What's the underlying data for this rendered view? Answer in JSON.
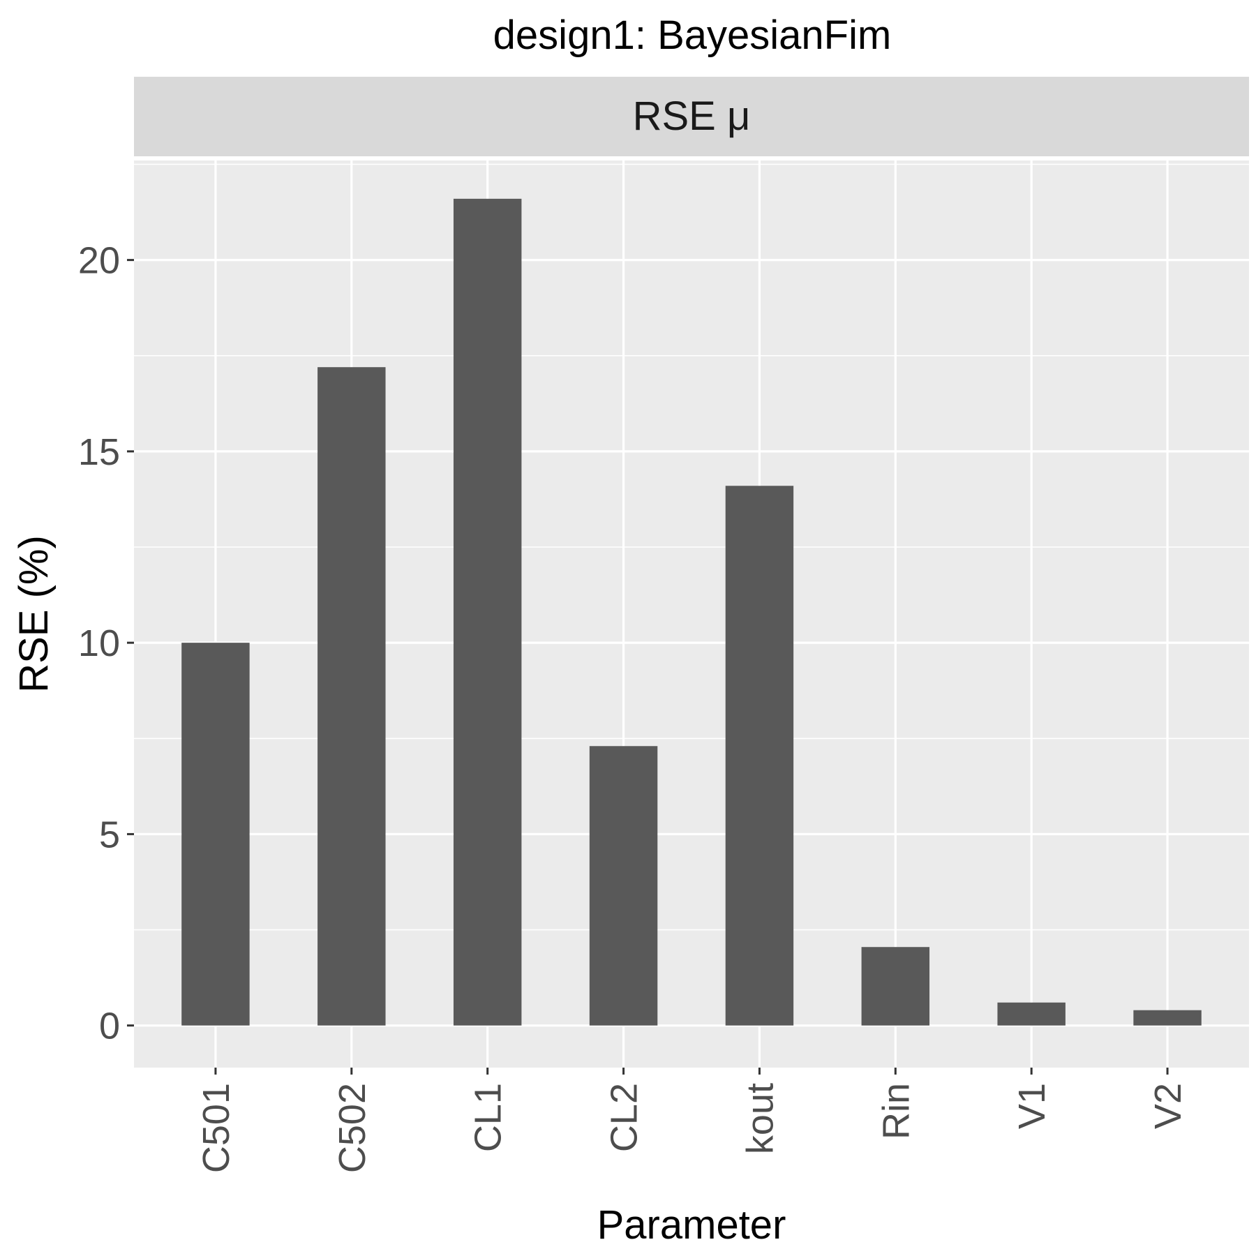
{
  "chart_data": {
    "type": "bar",
    "title": "design1: BayesianFim",
    "facet_label": "RSE μ",
    "xlabel": "Parameter",
    "ylabel": "RSE (%)",
    "categories": [
      "C501",
      "C502",
      "CL1",
      "CL2",
      "kout",
      "Rin",
      "V1",
      "V2"
    ],
    "values": [
      10.0,
      17.2,
      21.6,
      7.3,
      14.1,
      2.05,
      0.6,
      0.4
    ],
    "ylim": [
      -1.1,
      22.6
    ],
    "yticks": [
      0,
      5,
      10,
      15,
      20
    ],
    "ytick_labels": [
      "0",
      "5",
      "10",
      "15",
      "20"
    ],
    "grid": true,
    "colors": {
      "bar": "#595959",
      "panel": "#ebebeb",
      "strip": "#d9d9d9",
      "grid": "#ffffff"
    }
  }
}
